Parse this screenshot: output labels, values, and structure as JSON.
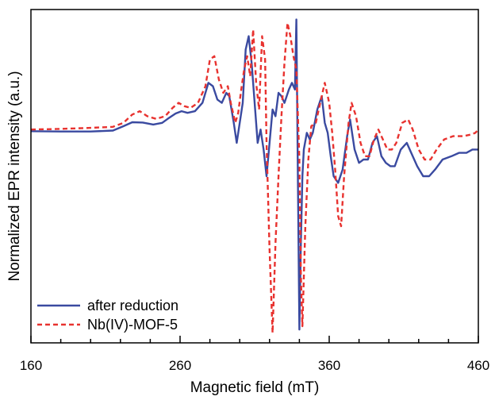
{
  "chart_data": {
    "type": "line",
    "title": "",
    "xlabel": "Magnetic field (mT)",
    "ylabel": "Normalized EPR intensity (a.u.)",
    "xlim": [
      160,
      460
    ],
    "ylim": [
      0,
      1
    ],
    "x_ticks": [
      "160",
      "260",
      "360",
      "460"
    ],
    "grid": false,
    "legend_position": "bottom-left",
    "series": [
      {
        "name": "after reduction",
        "color": "#3a4aa0",
        "style": "solid",
        "points": [
          [
            160,
            0.635
          ],
          [
            180,
            0.634
          ],
          [
            200,
            0.634
          ],
          [
            215,
            0.637
          ],
          [
            222,
            0.65
          ],
          [
            228,
            0.662
          ],
          [
            235,
            0.661
          ],
          [
            242,
            0.655
          ],
          [
            248,
            0.66
          ],
          [
            252,
            0.673
          ],
          [
            257,
            0.688
          ],
          [
            261,
            0.695
          ],
          [
            265,
            0.69
          ],
          [
            270,
            0.695
          ],
          [
            275,
            0.72
          ],
          [
            279,
            0.78
          ],
          [
            282,
            0.77
          ],
          [
            285,
            0.73
          ],
          [
            288,
            0.72
          ],
          [
            291,
            0.75
          ],
          [
            293,
            0.74
          ],
          [
            296,
            0.66
          ],
          [
            298,
            0.6
          ],
          [
            300,
            0.66
          ],
          [
            302,
            0.72
          ],
          [
            304,
            0.88
          ],
          [
            306,
            0.92
          ],
          [
            308,
            0.84
          ],
          [
            310,
            0.72
          ],
          [
            312,
            0.6
          ],
          [
            314,
            0.64
          ],
          [
            316,
            0.58
          ],
          [
            318,
            0.5
          ],
          [
            320,
            0.6
          ],
          [
            322,
            0.7
          ],
          [
            324,
            0.68
          ],
          [
            326,
            0.75
          ],
          [
            328,
            0.74
          ],
          [
            330,
            0.72
          ],
          [
            333,
            0.76
          ],
          [
            335,
            0.78
          ],
          [
            337,
            0.76
          ],
          [
            338,
            0.97
          ],
          [
            339,
            0.5
          ],
          [
            340,
            0.04
          ],
          [
            341,
            0.3
          ],
          [
            342,
            0.5
          ],
          [
            343,
            0.58
          ],
          [
            345,
            0.63
          ],
          [
            347,
            0.61
          ],
          [
            349,
            0.63
          ],
          [
            352,
            0.7
          ],
          [
            355,
            0.74
          ],
          [
            357,
            0.66
          ],
          [
            359,
            0.63
          ],
          [
            361,
            0.56
          ],
          [
            363,
            0.5
          ],
          [
            366,
            0.48
          ],
          [
            369,
            0.52
          ],
          [
            372,
            0.62
          ],
          [
            374,
            0.67
          ],
          [
            377,
            0.58
          ],
          [
            380,
            0.54
          ],
          [
            383,
            0.55
          ],
          [
            386,
            0.55
          ],
          [
            389,
            0.6
          ],
          [
            392,
            0.62
          ],
          [
            395,
            0.56
          ],
          [
            398,
            0.54
          ],
          [
            401,
            0.53
          ],
          [
            404,
            0.53
          ],
          [
            408,
            0.58
          ],
          [
            412,
            0.6
          ],
          [
            415,
            0.57
          ],
          [
            419,
            0.53
          ],
          [
            423,
            0.5
          ],
          [
            427,
            0.5
          ],
          [
            431,
            0.52
          ],
          [
            436,
            0.55
          ],
          [
            442,
            0.56
          ],
          [
            447,
            0.57
          ],
          [
            452,
            0.57
          ],
          [
            456,
            0.58
          ],
          [
            460,
            0.58
          ]
        ]
      },
      {
        "name": "Nb(IV)-MOF-5",
        "color": "#e8322f",
        "style": "dashed",
        "points": [
          [
            160,
            0.64
          ],
          [
            180,
            0.642
          ],
          [
            200,
            0.645
          ],
          [
            215,
            0.648
          ],
          [
            222,
            0.66
          ],
          [
            228,
            0.685
          ],
          [
            233,
            0.695
          ],
          [
            238,
            0.68
          ],
          [
            244,
            0.672
          ],
          [
            250,
            0.68
          ],
          [
            255,
            0.705
          ],
          [
            259,
            0.72
          ],
          [
            263,
            0.71
          ],
          [
            267,
            0.705
          ],
          [
            272,
            0.72
          ],
          [
            277,
            0.77
          ],
          [
            280,
            0.85
          ],
          [
            283,
            0.86
          ],
          [
            286,
            0.79
          ],
          [
            289,
            0.75
          ],
          [
            292,
            0.77
          ],
          [
            294,
            0.72
          ],
          [
            297,
            0.66
          ],
          [
            299,
            0.69
          ],
          [
            301,
            0.76
          ],
          [
            303,
            0.82
          ],
          [
            305,
            0.86
          ],
          [
            307,
            0.8
          ],
          [
            309,
            0.94
          ],
          [
            311,
            0.78
          ],
          [
            313,
            0.7
          ],
          [
            315,
            0.92
          ],
          [
            317,
            0.85
          ],
          [
            318,
            0.6
          ],
          [
            320,
            0.28
          ],
          [
            322,
            0.03
          ],
          [
            324,
            0.3
          ],
          [
            326,
            0.5
          ],
          [
            328,
            0.68
          ],
          [
            330,
            0.84
          ],
          [
            332,
            0.96
          ],
          [
            334,
            0.92
          ],
          [
            336,
            0.86
          ],
          [
            338,
            0.82
          ],
          [
            340,
            0.55
          ],
          [
            341,
            0.2
          ],
          [
            342,
            0.05
          ],
          [
            344,
            0.35
          ],
          [
            346,
            0.55
          ],
          [
            348,
            0.65
          ],
          [
            351,
            0.66
          ],
          [
            354,
            0.72
          ],
          [
            357,
            0.78
          ],
          [
            360,
            0.72
          ],
          [
            362,
            0.63
          ],
          [
            364,
            0.52
          ],
          [
            366,
            0.38
          ],
          [
            368,
            0.35
          ],
          [
            370,
            0.5
          ],
          [
            373,
            0.66
          ],
          [
            375,
            0.72
          ],
          [
            378,
            0.68
          ],
          [
            381,
            0.6
          ],
          [
            384,
            0.56
          ],
          [
            387,
            0.56
          ],
          [
            390,
            0.61
          ],
          [
            393,
            0.64
          ],
          [
            396,
            0.61
          ],
          [
            399,
            0.58
          ],
          [
            402,
            0.58
          ],
          [
            405,
            0.6
          ],
          [
            409,
            0.66
          ],
          [
            413,
            0.67
          ],
          [
            416,
            0.64
          ],
          [
            420,
            0.58
          ],
          [
            424,
            0.55
          ],
          [
            428,
            0.55
          ],
          [
            432,
            0.58
          ],
          [
            437,
            0.61
          ],
          [
            443,
            0.62
          ],
          [
            450,
            0.62
          ],
          [
            455,
            0.625
          ],
          [
            458,
            0.63
          ],
          [
            460,
            0.64
          ]
        ]
      }
    ]
  }
}
